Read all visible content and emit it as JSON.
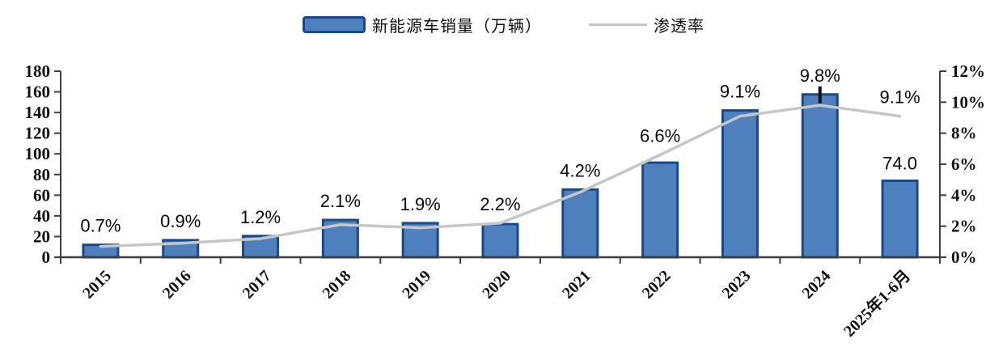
{
  "page": {
    "background": "#ffffff"
  },
  "legend": {
    "items": [
      {
        "type": "bar",
        "label": "新能源车销量（万辆）"
      },
      {
        "type": "line",
        "label": "渗透率"
      }
    ]
  },
  "chart_data": {
    "type": "bar+line",
    "title": "",
    "categories": [
      "2015",
      "2016",
      "2017",
      "2018",
      "2019",
      "2020",
      "2021",
      "2022",
      "2023",
      "2024",
      "2025年1-6月"
    ],
    "series": [
      {
        "name": "新能源车销量（万辆）",
        "type": "bar",
        "axis": "left",
        "unit": "万辆",
        "values": [
          12,
          16.5,
          20.5,
          36,
          33,
          32,
          65.5,
          91.5,
          142,
          157.5,
          74
        ]
      },
      {
        "name": "渗透率",
        "type": "line",
        "axis": "right",
        "unit": "%",
        "values": [
          0.7,
          0.9,
          1.2,
          2.1,
          1.9,
          2.2,
          4.2,
          6.6,
          9.1,
          9.8,
          9.1
        ]
      }
    ],
    "point_labels": [
      "0.7%",
      "0.9%",
      "1.2%",
      "2.1%",
      "1.9%",
      "2.2%",
      "4.2%",
      "6.6%",
      "9.1%",
      "9.8%",
      "9.1%"
    ],
    "last_bar_label": "74.0",
    "marker_tick_category_index": 9,
    "left_axis": {
      "min": 0,
      "max": 180,
      "step": 20,
      "tick_labels": [
        "0",
        "20",
        "40",
        "60",
        "80",
        "100",
        "120",
        "140",
        "160",
        "180"
      ]
    },
    "right_axis": {
      "min": 0,
      "max": 12,
      "step": 2,
      "tick_labels": [
        "0%",
        "2%",
        "4%",
        "6%",
        "8%",
        "10%",
        "12%"
      ]
    },
    "legend_position": "top-center",
    "grid": false,
    "colors": {
      "bar_fill": "#4E80BE",
      "bar_border": "#17498F",
      "line": "#C6C6C6",
      "axis": "#3F3F3F",
      "label_text": "#0A0A0A",
      "marker_tick": "#111111"
    }
  }
}
